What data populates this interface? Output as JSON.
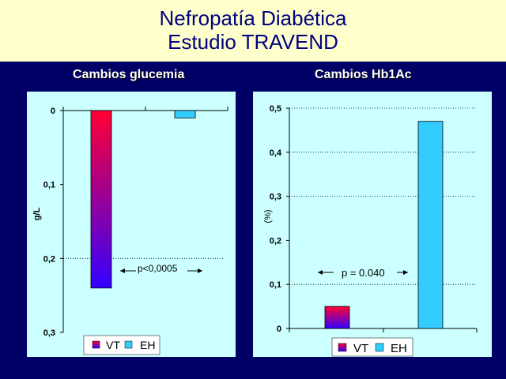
{
  "slide": {
    "title_line1": "Nefropatía Diabética",
    "title_line2": "Estudio TRAVEND"
  },
  "colors": {
    "background": "#000066",
    "title_band": "#ffffcc",
    "title_text": "#000080",
    "panel": "#ccffff",
    "vt_top": "#ff0033",
    "vt_bottom": "#3300ff",
    "eh": "#33ccff"
  },
  "chart_data": [
    {
      "type": "bar",
      "title": "Cambios glucemia",
      "ylabel": "g/L",
      "y_inverted": true,
      "ylim": [
        0,
        0.3
      ],
      "yticks": [
        "0",
        "0,1",
        "0,2",
        "0,3"
      ],
      "grid_y": [
        0.2
      ],
      "series": [
        {
          "name": "VT",
          "values": [
            0.24
          ],
          "color": "gradient red-blue"
        },
        {
          "name": "EH",
          "values": [
            0.01
          ],
          "color": "#33ccff"
        }
      ],
      "annotation": "p<0,0005",
      "legend": "bottom",
      "legend_labels": [
        "VT",
        "EH"
      ]
    },
    {
      "type": "bar",
      "title": "Cambios Hb1Ac",
      "ylabel": "(%)",
      "ylim": [
        0,
        0.5
      ],
      "yticks": [
        "0",
        "0,1",
        "0,2",
        "0,3",
        "0,4",
        "0,5"
      ],
      "grid_y": [
        0.1,
        0.3,
        0.4,
        0.5
      ],
      "series": [
        {
          "name": "VT",
          "values": [
            0.05
          ],
          "color": "gradient red-blue"
        },
        {
          "name": "EH",
          "values": [
            0.47
          ],
          "color": "#33ccff"
        }
      ],
      "annotation": "p = 0.040",
      "legend": "bottom",
      "legend_labels": [
        "VT",
        "EH"
      ]
    }
  ]
}
